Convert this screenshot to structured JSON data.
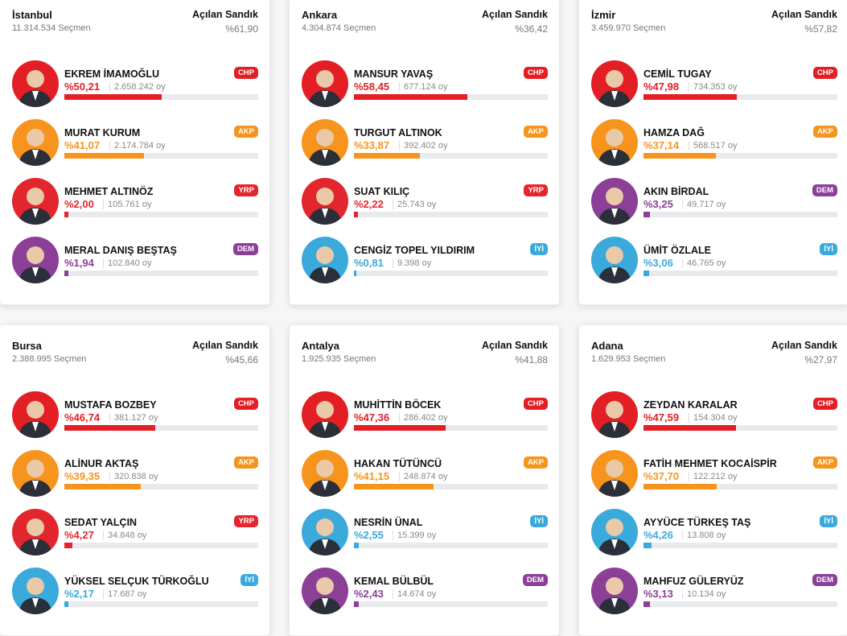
{
  "colors": {
    "CHP": "#e31e24",
    "AKP": "#f7941d",
    "YRP": "#e3262e",
    "DEM": "#8b3f97",
    "İYİ": "#3aa9dc"
  },
  "opened_label": "Açılan Sandık",
  "voters_suffix": "Seçmen",
  "votes_suffix": "oy",
  "cities": [
    {
      "name": "İstanbul",
      "voters": "11.314.534",
      "opened": "%61,90",
      "candidates": [
        {
          "name": "EKREM İMAMOĞLU",
          "party": "CHP",
          "pct": "%50,21",
          "value": 50.21,
          "votes": "2.658.242"
        },
        {
          "name": "MURAT KURUM",
          "party": "AKP",
          "pct": "%41,07",
          "value": 41.07,
          "votes": "2.174.784"
        },
        {
          "name": "MEHMET ALTINÖZ",
          "party": "YRP",
          "pct": "%2,00",
          "value": 2.0,
          "votes": "105.761"
        },
        {
          "name": "MERAL DANIŞ BEŞTAŞ",
          "party": "DEM",
          "pct": "%1,94",
          "value": 1.94,
          "votes": "102.840"
        }
      ]
    },
    {
      "name": "Ankara",
      "voters": "4.304.874",
      "opened": "%36,42",
      "candidates": [
        {
          "name": "MANSUR YAVAŞ",
          "party": "CHP",
          "pct": "%58,45",
          "value": 58.45,
          "votes": "677.124"
        },
        {
          "name": "TURGUT ALTINOK",
          "party": "AKP",
          "pct": "%33,87",
          "value": 33.87,
          "votes": "392.402"
        },
        {
          "name": "SUAT KILIÇ",
          "party": "YRP",
          "pct": "%2,22",
          "value": 2.22,
          "votes": "25.743"
        },
        {
          "name": "CENGİZ TOPEL YILDIRIM",
          "party": "İYİ",
          "pct": "%0,81",
          "value": 0.81,
          "votes": "9.398"
        }
      ]
    },
    {
      "name": "İzmir",
      "voters": "3.459.970",
      "opened": "%57,82",
      "candidates": [
        {
          "name": "CEMİL TUGAY",
          "party": "CHP",
          "pct": "%47,98",
          "value": 47.98,
          "votes": "734.353"
        },
        {
          "name": "HAMZA DAĞ",
          "party": "AKP",
          "pct": "%37,14",
          "value": 37.14,
          "votes": "568.517"
        },
        {
          "name": "AKIN BİRDAL",
          "party": "DEM",
          "pct": "%3,25",
          "value": 3.25,
          "votes": "49.717"
        },
        {
          "name": "ÜMİT ÖZLALE",
          "party": "İYİ",
          "pct": "%3,06",
          "value": 3.06,
          "votes": "46.765"
        }
      ]
    },
    {
      "name": "Bursa",
      "voters": "2.388.995",
      "opened": "%45,66",
      "candidates": [
        {
          "name": "MUSTAFA BOZBEY",
          "party": "CHP",
          "pct": "%46,74",
          "value": 46.74,
          "votes": "381.127"
        },
        {
          "name": "ALİNUR AKTAŞ",
          "party": "AKP",
          "pct": "%39,35",
          "value": 39.35,
          "votes": "320.838"
        },
        {
          "name": "SEDAT YALÇIN",
          "party": "YRP",
          "pct": "%4,27",
          "value": 4.27,
          "votes": "34.848"
        },
        {
          "name": "YÜKSEL SELÇUK TÜRKOĞLU",
          "party": "İYİ",
          "pct": "%2,17",
          "value": 2.17,
          "votes": "17.687"
        }
      ]
    },
    {
      "name": "Antalya",
      "voters": "1.925.935",
      "opened": "%41,88",
      "candidates": [
        {
          "name": "MUHİTTİN BÖCEK",
          "party": "CHP",
          "pct": "%47,36",
          "value": 47.36,
          "votes": "286.402"
        },
        {
          "name": "HAKAN TÜTÜNCÜ",
          "party": "AKP",
          "pct": "%41,15",
          "value": 41.15,
          "votes": "248.874"
        },
        {
          "name": "NESRİN ÜNAL",
          "party": "İYİ",
          "pct": "%2,55",
          "value": 2.55,
          "votes": "15.399"
        },
        {
          "name": "KEMAL BÜLBÜL",
          "party": "DEM",
          "pct": "%2,43",
          "value": 2.43,
          "votes": "14.674"
        }
      ]
    },
    {
      "name": "Adana",
      "voters": "1.629.953",
      "opened": "%27,97",
      "candidates": [
        {
          "name": "ZEYDAN KARALAR",
          "party": "CHP",
          "pct": "%47,59",
          "value": 47.59,
          "votes": "154.304"
        },
        {
          "name": "FATİH MEHMET KOCAİSPİR",
          "party": "AKP",
          "pct": "%37,70",
          "value": 37.7,
          "votes": "122.212"
        },
        {
          "name": "AYYÜCE TÜRKEŞ TAŞ",
          "party": "İYİ",
          "pct": "%4,26",
          "value": 4.26,
          "votes": "13.808"
        },
        {
          "name": "MAHFUZ GÜLERYÜZ",
          "party": "DEM",
          "pct": "%3,13",
          "value": 3.13,
          "votes": "10.134"
        }
      ]
    }
  ]
}
